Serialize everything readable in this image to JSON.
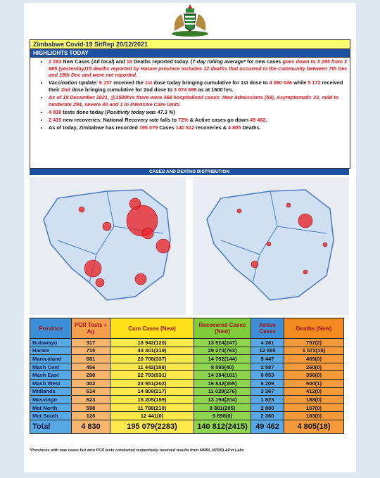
{
  "header": {
    "title": "Zimbabwe Covid-19 SitRep 20/12/2021",
    "section": "HIGHLIGHTS TODAY"
  },
  "highlights": [
    [
      {
        "text": "2 283",
        "style": "red"
      },
      {
        "text": " New Cases ("
      },
      {
        "text": "All local",
        "style": "italic"
      },
      {
        "text": ") and "
      },
      {
        "text": "18",
        "style": "red"
      },
      {
        "text": " Deaths reported today. ("
      },
      {
        "text": "7-day rolling average*",
        "style": "italic"
      },
      {
        "text": " for new cases "
      },
      {
        "text": "goes down to 3 295 from 3 665 (yesterday)15 deaths reported by Harare province includes 12 deaths that occurred in the community between 7th Dec and 18th Dec and were not reported.",
        "style": "red-italic"
      }
    ],
    [
      {
        "text": "Vaccination Update: ",
        "style": "italic"
      },
      {
        "text": "6 157",
        "style": "red"
      },
      {
        "text": " received the "
      },
      {
        "text": "1st",
        "style": "red"
      },
      {
        "text": " dose today bringing cumulative for 1st dose to "
      },
      {
        "text": "4 060 046",
        "style": "red"
      },
      {
        "text": " while "
      },
      {
        "text": "5 172",
        "style": "red"
      },
      {
        "text": " received their "
      },
      {
        "text": "2nd",
        "style": "red"
      },
      {
        "text": " dose bringing cumulative for 2nd dose to "
      },
      {
        "text": "3 074 698",
        "style": "red"
      },
      {
        "text": " as at 1600 hrs."
      }
    ],
    [
      {
        "text": "As of 19 December 2021, @1500hrs there were 368 hospitalised cases: New Admissions (58), Asymptomatic 33, mild to moderate 294, severe 40 and 1 in Intensive Care Units.",
        "style": "red-italic"
      }
    ],
    [
      {
        "text": "4 830",
        "style": "red"
      },
      {
        "text": " tests done today ("
      },
      {
        "text": "Positivity today was 47.3 %",
        "style": "italic"
      },
      {
        "text": ")"
      }
    ],
    [
      {
        "text": "2 415",
        "style": "red"
      },
      {
        "text": " new recoveries: National Recovery rate falls to "
      },
      {
        "text": "72%",
        "style": "red"
      },
      {
        "text": " & Active cases go down "
      },
      {
        "text": "49 462",
        "style": "red"
      },
      {
        "text": "."
      }
    ],
    [
      {
        "text": "As of today, Zimbabwe has recorded "
      },
      {
        "text": "195 079",
        "style": "red"
      },
      {
        "text": " Cases "
      },
      {
        "text": "140 812",
        "style": "red"
      },
      {
        "text": " recoveries & "
      },
      {
        "text": "4 805",
        "style": "red"
      },
      {
        "text": " Deaths."
      }
    ]
  ],
  "distribution_title": "CASES AND DEATHS DISTRIBUTION",
  "table": {
    "columns": [
      {
        "header": "Province",
        "color": "#3d8fd8",
        "cell_color": "#58a8e6"
      },
      {
        "header": "PCR Tests + Ag",
        "color": "#f6a04d",
        "cell_color": "#f7b46c"
      },
      {
        "header": "Cum Cases (New)",
        "color": "#ffe11a",
        "cell_color": "#ffe84a"
      },
      {
        "header": "Recovered Cases (New)",
        "color": "#7fcb3a",
        "cell_color": "#8fd44e"
      },
      {
        "header": "Active Cases",
        "color": "#3d8fd8",
        "cell_color": "#58a8e6"
      },
      {
        "header": "Deaths (New)",
        "color": "#f28a1e",
        "cell_color": "#f59a3a"
      }
    ],
    "rows": [
      [
        "Bulawayo",
        "317",
        "18 942(120)",
        "13 924(247)",
        "4 261",
        "757(2)"
      ],
      [
        "Harare",
        "715",
        "43 401(319)",
        "29 273(763)",
        "12 555",
        "1 573(15)"
      ],
      [
        "Manicaland",
        "681",
        "20 708(337)",
        "14 792(144)",
        "5 447",
        "469(0)"
      ],
      [
        "Mash Cent",
        "456",
        "11 442(188)",
        "8 595(40)",
        "2 587",
        "260(0)"
      ],
      [
        "Mash East",
        "298",
        "22 793(531)",
        "14 384(181)",
        "8 053",
        "356(0)"
      ],
      [
        "Mash West",
        "402",
        "23 551(202)",
        "16 842(355)",
        "6 209",
        "500(1)"
      ],
      [
        "Midlands",
        "614",
        "14 808(217)",
        "11 029(276)",
        "3 367",
        "412(0)"
      ],
      [
        "Masvingo",
        "623",
        "15 205(159)",
        "13 194(204)",
        "1 823",
        "188(0)"
      ],
      [
        "Mat North",
        "598",
        "11 788(210)",
        "8 881(205)",
        "2 800",
        "107(0)"
      ],
      [
        "Mat South",
        "126",
        "12 441(0)",
        "9 898(0)",
        "2 360",
        "183(0)"
      ]
    ],
    "total": [
      "Total",
      "4 830",
      "195 079(2283)",
      "140 812(2415)",
      "49 462",
      "4 805(18)"
    ]
  },
  "footnote": "*Provinces  with new cases but zero  PCR tests conducted respectively received results from NMRL,NTBRL&Pvt Labs"
}
